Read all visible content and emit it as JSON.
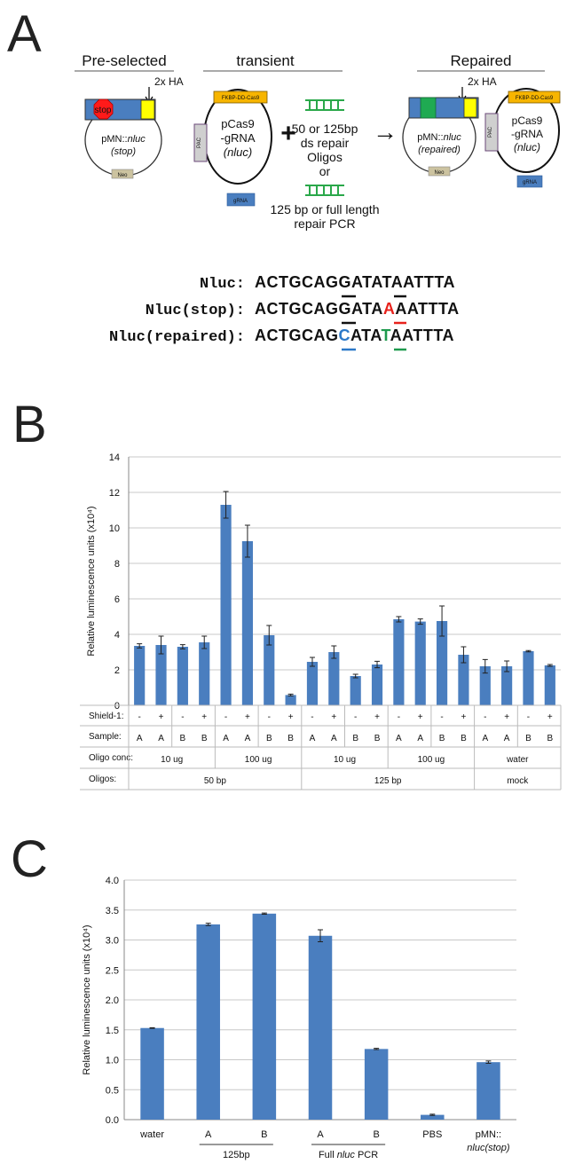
{
  "panelA": {
    "letter": "A",
    "preselected": {
      "title": "Pre-selected",
      "ha": "2x HA",
      "stop": "stop",
      "plasmid": "pMN::",
      "plasmid_italic": "nluc",
      "status": "(stop)",
      "marker": "Neo"
    },
    "transient": {
      "title": "transient",
      "fkbp": "FKBP-DD-Cas9",
      "pac": "PAC",
      "line1": "pCas9",
      "line2": "-gRNA",
      "line3": "(nluc)",
      "grna": "gRNA"
    },
    "plus": "+",
    "repair": {
      "line1": "50 or 125bp",
      "line2": "ds repair",
      "line3": "Oligos",
      "or": "or",
      "line4": "125 bp or full length",
      "line5": "repair PCR"
    },
    "arrow": "→",
    "repaired": {
      "title": "Repaired",
      "ha": "2x HA",
      "plasmid": "pMN::",
      "plasmid_italic": "nluc",
      "status": "(repaired)",
      "marker": "Neo",
      "fkbp": "FKBP-DD-Cas9",
      "pac": "PAC",
      "line1": "pCas9",
      "line2": "-gRNA",
      "line3": "(nluc)",
      "grna": "gRNA"
    },
    "sequences": [
      {
        "label": "Nluc:",
        "pre": "ACTGCAG",
        "mid1": "G",
        "mid2": "ATA",
        "mid3": "T",
        "post": "AATTTA"
      },
      {
        "label": "Nluc(stop):",
        "pre": "ACTGCAG",
        "mid1": "G",
        "mid2": "ATA",
        "mid3": "A",
        "post": "AATTTA"
      },
      {
        "label": "Nluc(repaired):",
        "pre": "ACTGCAG",
        "mid1": "C",
        "mid2": "ATA",
        "mid3": "T",
        "post": "AATTTA"
      }
    ]
  },
  "panelB": {
    "letter": "B",
    "chart_data": {
      "type": "bar",
      "ylabel": "Relative luminescence units (x10⁴)",
      "ylim": [
        0,
        14
      ],
      "yticks": [
        "0",
        "2",
        "4",
        "6",
        "8",
        "10",
        "12",
        "14"
      ],
      "values": [
        3.35,
        3.4,
        3.3,
        3.55,
        11.3,
        9.25,
        3.95,
        0.58,
        2.45,
        3.0,
        1.65,
        2.3,
        4.85,
        4.72,
        4.75,
        2.85,
        2.2,
        2.2,
        3.05,
        2.25
      ],
      "errors": [
        0.12,
        0.5,
        0.12,
        0.35,
        0.75,
        0.9,
        0.55,
        0.05,
        0.25,
        0.35,
        0.1,
        0.18,
        0.15,
        0.15,
        0.85,
        0.45,
        0.38,
        0.3,
        0.04,
        0.05
      ],
      "shield": [
        "-",
        "+",
        "-",
        "+",
        "-",
        "+",
        "-",
        "+",
        "-",
        "+",
        "-",
        "+",
        "-",
        "+",
        "-",
        "+",
        "-",
        "+",
        "-",
        "+"
      ],
      "sample": [
        "A",
        "A",
        "B",
        "B",
        "A",
        "A",
        "B",
        "B",
        "A",
        "A",
        "B",
        "B",
        "A",
        "A",
        "B",
        "B",
        "A",
        "A",
        "B",
        "B"
      ],
      "row_labels": {
        "shield": "Shield-1:",
        "sample": "Sample:",
        "conc": "Oligo conc:",
        "oligos": "Oligos:"
      },
      "conc_groups": [
        "10 ug",
        "100 ug",
        "10 ug",
        "100 ug",
        "water"
      ],
      "oligo_groups": [
        "50 bp",
        "125 bp",
        "mock"
      ],
      "color": "#4a7ebf"
    }
  },
  "panelC": {
    "letter": "C",
    "chart_data": {
      "type": "bar",
      "ylabel": "Relative luminescence units (x10⁴)",
      "ylim": [
        0,
        4.0
      ],
      "yticks": [
        "0.0",
        "0.5",
        "1.0",
        "1.5",
        "2.0",
        "2.5",
        "3.0",
        "3.5",
        "4.0"
      ],
      "categories": [
        "water",
        "A",
        "B",
        "A",
        "B",
        "PBS",
        "pMN::"
      ],
      "values": [
        1.53,
        3.26,
        3.44,
        3.07,
        1.18,
        0.08,
        0.96
      ],
      "errors": [
        0.005,
        0.02,
        0.01,
        0.1,
        0.01,
        0.01,
        0.02
      ],
      "group_labels": [
        "125bp",
        "Full ",
        "nluc",
        " PCR"
      ],
      "last_label_line2": "nluc(stop)",
      "color": "#4a7ebf"
    }
  }
}
